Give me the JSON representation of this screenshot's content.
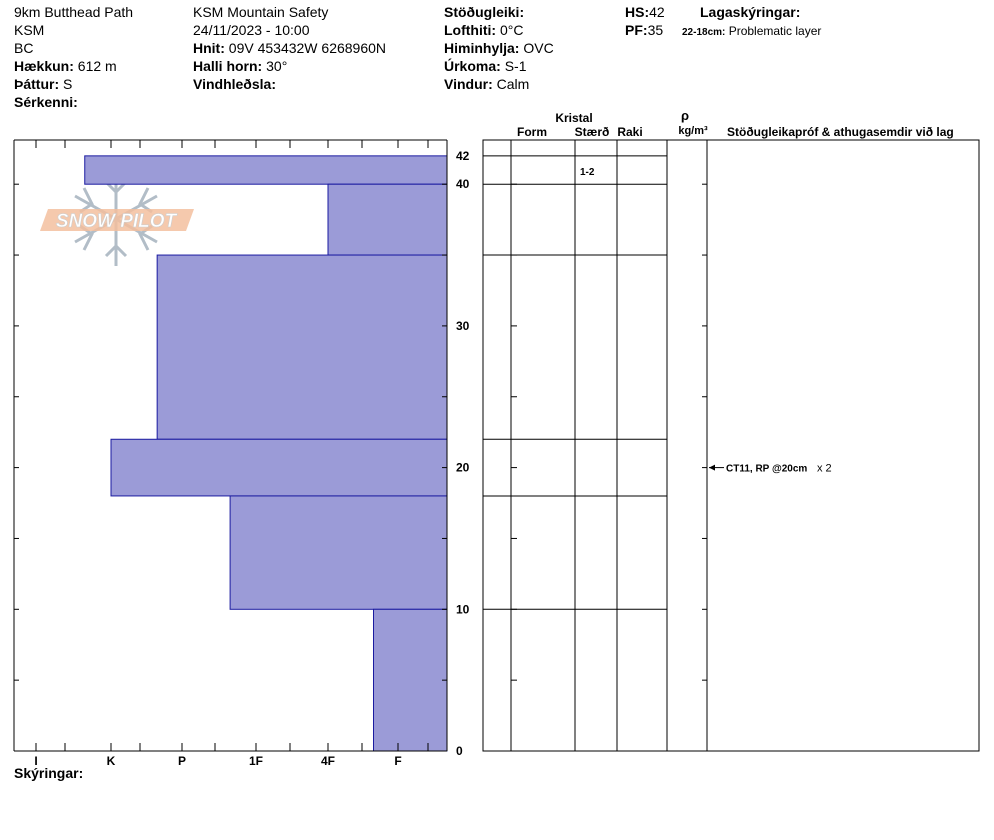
{
  "site": {
    "name": "9km Butthead Path",
    "org_short": "KSM",
    "region": "BC",
    "elevation_label": "Hækkun:",
    "elevation_value": "612 m",
    "aspect_label": "Þáttur:",
    "aspect_value": "S",
    "features_label": "Sérkenni:"
  },
  "obs": {
    "operation": "KSM Mountain Safety",
    "datetime": "24/11/2023 - 10:00",
    "coords_label": "Hnit:",
    "coords_value": "09V 453432W 6268960N",
    "slope_label": "Halli horn:",
    "slope_value": "30°",
    "wind_loading_label": "Vindhleðsla:"
  },
  "weather": {
    "stability_label": "Stöðugleiki:",
    "air_temp_label": "Lofthiti:",
    "air_temp_value": "0°C",
    "sky_label": "Himinhylja:",
    "sky_value": "OVC",
    "precip_label": "Úrkoma:",
    "precip_value": "S-1",
    "wind_label": "Vindur:",
    "wind_value": "Calm"
  },
  "snow": {
    "hs_label": "HS:",
    "hs_value": "42",
    "pf_label": "PF:",
    "pf_value": "35",
    "legend_label": "Lagaskýringar:",
    "layer_range": "22-18cm:",
    "layer_desc": "Problematic layer"
  },
  "logo_text": "SNOW PILOT",
  "chart_data": {
    "type": "bar",
    "orientation": "horizontal-step",
    "y_range": [
      0,
      42
    ],
    "y_ticks": [
      "0",
      "10",
      "20",
      "30",
      "40",
      "42"
    ],
    "hardness_ticks": [
      "I",
      "K",
      "P",
      "1F",
      "4F",
      "F"
    ],
    "layers": [
      {
        "top": 42,
        "bottom": 40,
        "hardness": 0.65
      },
      {
        "top": 40,
        "bottom": 35,
        "hardness": 4.0
      },
      {
        "top": 35,
        "bottom": 22,
        "hardness": 1.65
      },
      {
        "top": 22,
        "bottom": 18,
        "hardness": 1.0
      },
      {
        "top": 18,
        "bottom": 10,
        "hardness": 2.65
      },
      {
        "top": 10,
        "bottom": 0,
        "hardness": 4.65
      }
    ],
    "crystal_header": "Kristal",
    "col_form": "Form",
    "col_size": "Stærð",
    "col_moisture": "Raki",
    "density_symbol": "ρ",
    "density_unit": "kg/m³",
    "tests_header": "Stöðugleikapróf & athugasemdir við lag",
    "size_label": {
      "depth": 41,
      "text": "1-2"
    },
    "tests": [
      {
        "depth": 20,
        "text": "CT11, RP @20cm",
        "count": "x 2"
      }
    ],
    "footer_label": "Skýringar:"
  },
  "colors": {
    "layer_fill": "#9b9bd7",
    "layer_stroke": "#1a1aa0"
  }
}
